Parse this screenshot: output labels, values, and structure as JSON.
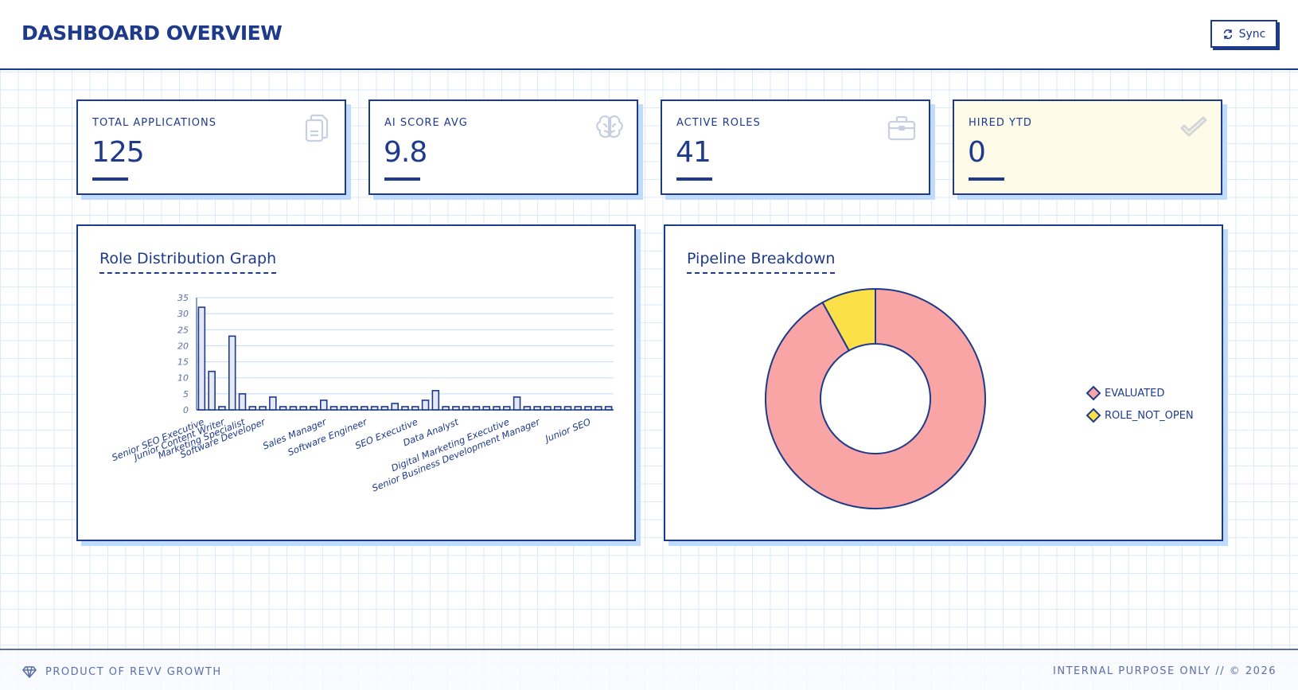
{
  "header": {
    "title": "DASHBOARD OVERVIEW",
    "sync_label": "Sync",
    "sync_icon": "refresh-icon"
  },
  "kpis": [
    {
      "label": "TOTAL APPLICATIONS",
      "value": "125",
      "icon": "documents-icon",
      "highlight": false
    },
    {
      "label": "AI SCORE AVG",
      "value": "9.8",
      "icon": "brain-icon",
      "highlight": false
    },
    {
      "label": "ACTIVE ROLES",
      "value": "41",
      "icon": "briefcase-icon",
      "highlight": false
    },
    {
      "label": "HIRED YTD",
      "value": "0",
      "icon": "check-icon",
      "highlight": true
    }
  ],
  "panels": {
    "role_distribution": {
      "title": "Role Distribution Graph"
    },
    "pipeline": {
      "title": "Pipeline Breakdown"
    }
  },
  "colors": {
    "primary": "#1e3a8a",
    "grid": "#dbeafe",
    "shadow": "#bfdbfe",
    "bar_fill": "#e5e9f5",
    "evaluated": "#f9a5a5",
    "role_not_open": "#fce047",
    "highlight_card": "#fefbe8"
  },
  "chart_data": [
    {
      "type": "bar",
      "title": "Role Distribution Graph",
      "xlabel": "",
      "ylabel": "",
      "ylim": [
        0,
        35
      ],
      "yticks": [
        0,
        5,
        10,
        15,
        20,
        25,
        30,
        35
      ],
      "grid": true,
      "legend": "none",
      "categories": [
        "Senior SEO Executive",
        "",
        "Junior Content Writer",
        "",
        "Marketing Specialist",
        "",
        "Software Developer",
        "",
        "",
        "",
        "",
        "",
        "Sales Manager",
        "",
        "",
        "",
        "Software Engineer",
        "",
        "",
        "",
        "",
        "SEO Executive",
        "",
        "",
        "",
        "Data Analyst",
        "",
        "",
        "",
        "",
        "Digital Marketing Executive",
        "",
        "",
        "Senior Business Development Manager",
        "",
        "",
        "",
        "",
        "Junior SEO",
        "",
        ""
      ],
      "tick_labels": [
        "Senior SEO Executive",
        "Junior Content Writer",
        "Marketing Specialist",
        "Software Developer",
        "Sales Manager",
        "Software Engineer",
        "SEO Executive",
        "Data Analyst",
        "Digital Marketing Executive",
        "Senior Business Development Manager",
        "Junior SEO"
      ],
      "values": [
        32,
        12,
        1,
        23,
        5,
        1,
        1,
        4,
        1,
        1,
        1,
        1,
        3,
        1,
        1,
        1,
        1,
        1,
        1,
        2,
        1,
        1,
        3,
        6,
        1,
        1,
        1,
        1,
        1,
        1,
        1,
        4,
        1,
        1,
        1,
        1,
        1,
        1,
        1,
        1,
        1
      ]
    },
    {
      "type": "pie",
      "subtype": "donut",
      "title": "Pipeline Breakdown",
      "labels": [
        "EVALUATED",
        "ROLE_NOT_OPEN"
      ],
      "values": [
        115,
        10
      ],
      "colors": [
        "#f9a5a5",
        "#fce047"
      ],
      "legend": "right"
    }
  ],
  "legend": [
    {
      "label": "EVALUATED",
      "color": "#f9a5a5"
    },
    {
      "label": "ROLE_NOT_OPEN",
      "color": "#fce047"
    }
  ],
  "footer": {
    "left": "PRODUCT OF REVV GROWTH",
    "left_icon": "diamond-icon",
    "right": "INTERNAL PURPOSE ONLY // © 2026"
  }
}
